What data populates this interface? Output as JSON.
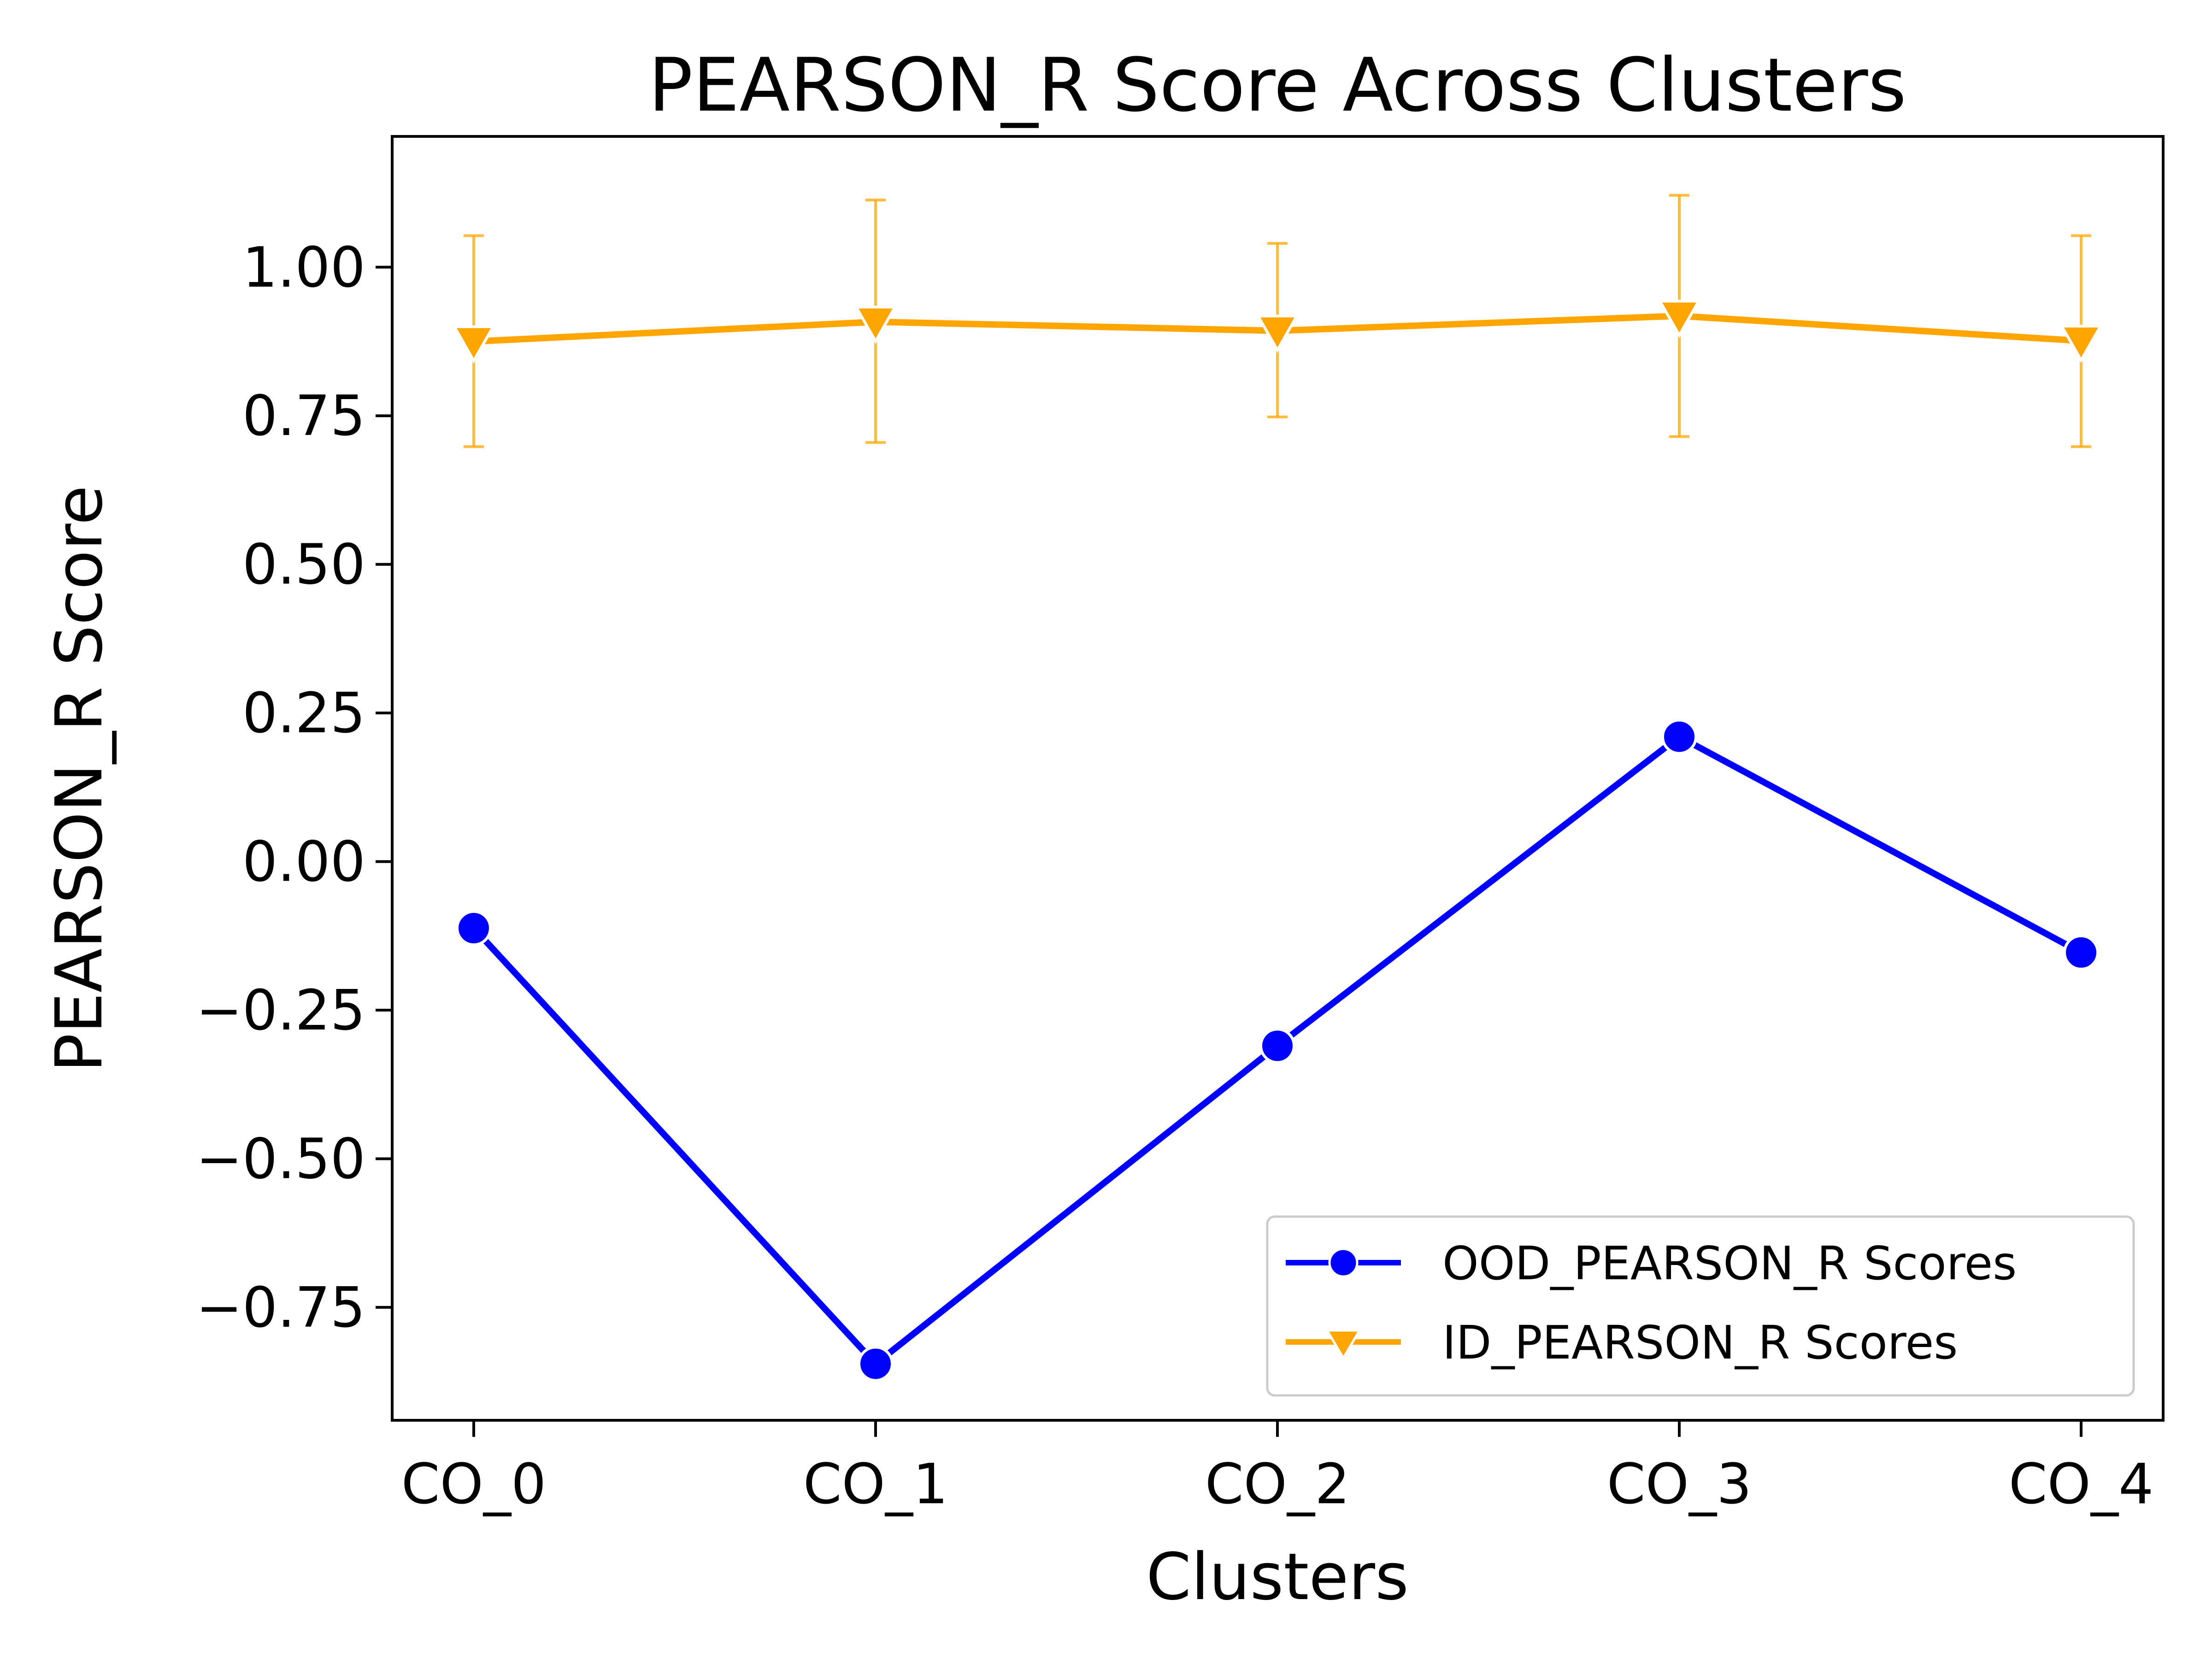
{
  "chart_data": {
    "type": "line",
    "title": "PEARSON_R Score Across Clusters",
    "xlabel": "Clusters",
    "ylabel": "PEARSON_R Score",
    "categories": [
      "CO_0",
      "CO_1",
      "CO_2",
      "CO_3",
      "CO_4"
    ],
    "ylim": [
      -0.94,
      1.22
    ],
    "yticks": [
      -0.75,
      -0.5,
      -0.25,
      0.0,
      0.25,
      0.5,
      0.75,
      1.0
    ],
    "ytick_labels": [
      "−0.75",
      "−0.50",
      "−0.25",
      "0.00",
      "0.25",
      "0.50",
      "0.75",
      "1.00"
    ],
    "grid": false,
    "legend_position": "lower-right",
    "series": [
      {
        "name": "OOD_PEARSON_R Scores",
        "color": "#0000ff",
        "marker": "circle",
        "values": [
          -0.112,
          -0.845,
          -0.31,
          0.21,
          -0.153
        ]
      },
      {
        "name": "ID_PEARSON_R Scores",
        "color": "#ffa500",
        "marker": "triangle-down",
        "values": [
          0.875,
          0.908,
          0.893,
          0.918,
          0.876
        ],
        "error_low": [
          0.698,
          0.705,
          0.748,
          0.715,
          0.698
        ],
        "error_high": [
          1.053,
          1.113,
          1.04,
          1.121,
          1.053
        ]
      }
    ]
  }
}
